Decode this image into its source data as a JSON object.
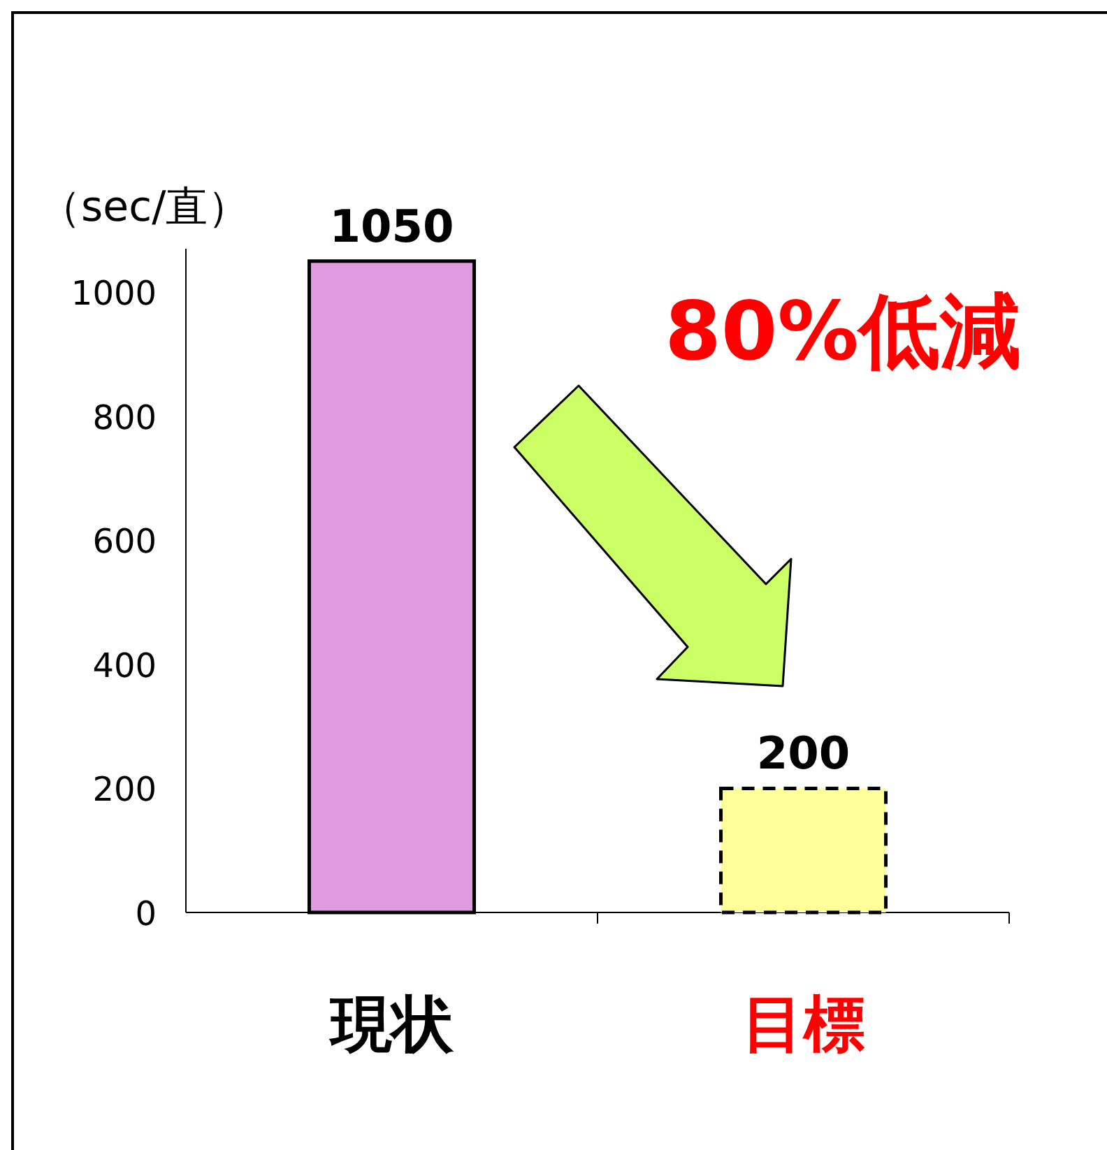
{
  "chart_data": {
    "type": "bar",
    "ylabel": "（sec/直）",
    "categories": [
      "現状",
      "目標"
    ],
    "values": [
      1050,
      200
    ],
    "colors": [
      "#e09ae0",
      "#ffff99"
    ],
    "ylim": [
      0,
      1070
    ],
    "yticks": [
      0,
      200,
      400,
      600,
      800,
      1000
    ],
    "data_labels": true,
    "annotations": [
      "80%低減"
    ]
  }
}
